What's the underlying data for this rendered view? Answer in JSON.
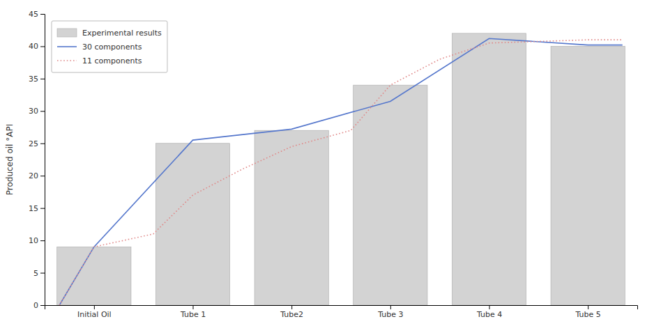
{
  "chart_data": {
    "type": "bar",
    "categories": [
      "Initial Oil",
      "Tube 1",
      "Tube2",
      "Tube 3",
      "Tube 4",
      "Tube 5"
    ],
    "series": [
      {
        "name": "Experimental results",
        "type": "bar",
        "color": "#d3d3d3",
        "values": [
          9,
          25,
          27,
          34,
          42,
          40
        ]
      },
      {
        "name": "30 components",
        "type": "line",
        "color": "#5577cc",
        "line_style": "solid",
        "x": [
          -0.35,
          0,
          1,
          2,
          3,
          4,
          5,
          5.35
        ],
        "values": [
          0,
          9,
          25.5,
          27.2,
          31.5,
          41.2,
          40.2,
          40.2
        ]
      },
      {
        "name": "11 components",
        "type": "line",
        "color": "#e08888",
        "line_style": "dotted",
        "x": [
          -0.35,
          0,
          0.6,
          1,
          1.5,
          2,
          2.6,
          3,
          3.5,
          4,
          5,
          5.35
        ],
        "values": [
          0,
          9,
          11,
          17,
          21,
          24.5,
          27,
          34,
          38,
          40.5,
          41.0,
          41.0
        ]
      }
    ],
    "ylabel": "Produced oil °API",
    "ylim": [
      0,
      45
    ],
    "yticks": [
      0,
      5,
      10,
      15,
      20,
      25,
      30,
      35,
      40,
      45
    ],
    "grid": false,
    "legend": "upper left"
  }
}
